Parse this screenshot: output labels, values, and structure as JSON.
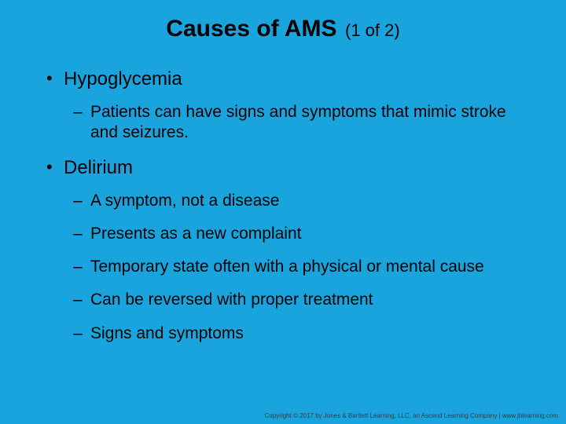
{
  "colors": {
    "background": "#1aa4dd",
    "title": "#000000",
    "text": "#000000",
    "footer": "#3b3b3b"
  },
  "typography": {
    "title_fontsize": 30,
    "subtitle_fontsize": 22,
    "level1_fontsize": 24,
    "level2_fontsize": 21,
    "footer_fontsize": 8
  },
  "title": {
    "main": "Causes of AMS",
    "sub": "(1 of 2)"
  },
  "bullets": [
    {
      "text": "Hypoglycemia",
      "children": [
        "Patients can have signs and symptoms that mimic stroke and seizures."
      ]
    },
    {
      "text": "Delirium",
      "children": [
        "A symptom, not a disease",
        "Presents as a new complaint",
        "Temporary state often with a physical or mental cause",
        "Can be reversed with proper treatment",
        "Signs and symptoms"
      ]
    }
  ],
  "footer": "Copyright © 2017 by Jones & Bartlett Learning, LLC, an Ascend Learning Company | www.jblearning.com"
}
